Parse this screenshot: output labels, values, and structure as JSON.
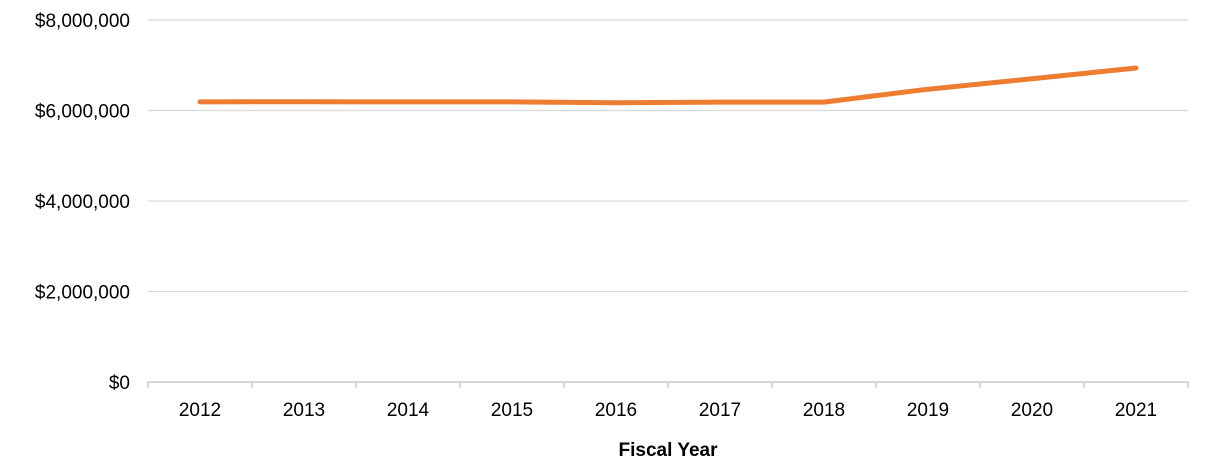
{
  "chart_data": {
    "type": "line",
    "title": "",
    "xlabel": "Fiscal Year",
    "ylabel": "",
    "categories": [
      "2012",
      "2013",
      "2014",
      "2015",
      "2016",
      "2017",
      "2018",
      "2019",
      "2020",
      "2021"
    ],
    "series": [
      {
        "color": "#ED7D31",
        "values": [
          6190000,
          6195000,
          6190000,
          6190000,
          6170000,
          6185000,
          6185000,
          6470000,
          6700000,
          6940000
        ]
      }
    ],
    "ylim": [
      0,
      8000000
    ],
    "yticks": [
      0,
      2000000,
      4000000,
      6000000,
      8000000
    ],
    "ytick_labels": [
      "$0",
      "$2,000,000",
      "$4,000,000",
      "$6,000,000",
      "$8,000,000"
    ],
    "grid": true,
    "legend": "none"
  }
}
